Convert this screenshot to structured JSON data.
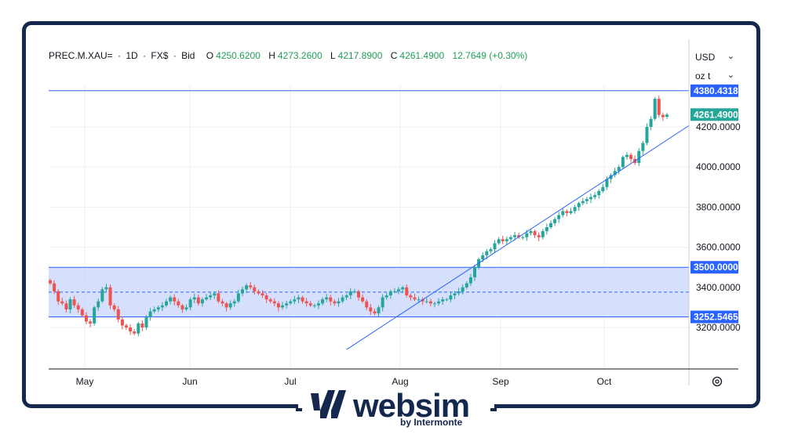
{
  "header": {
    "symbol": "PREC.M.XAU=",
    "interval": "1D",
    "exchange": "FX$",
    "side": "Bid",
    "o_label": "O",
    "o_value": "4250.6200",
    "h_label": "H",
    "h_value": "4273.2600",
    "l_label": "L",
    "l_value": "4217.8900",
    "c_label": "C",
    "c_value": "4261.4900",
    "change": "12.7649 (+0.30%)"
  },
  "currency_select": {
    "value": "USD"
  },
  "unit_select": {
    "value": "oz t"
  },
  "price_labels": {
    "resistance_high": "4380.4318",
    "last": "4261.4900",
    "range_top": "3500.0000",
    "range_bottom": "3252.5465"
  },
  "logo": {
    "text": "websim",
    "subtitle": "by Intermonte"
  },
  "colors": {
    "up": "#26a69a",
    "down": "#ef5350",
    "line": "#2962ff",
    "last": "#26a69a",
    "frame": "#14284d"
  },
  "chart_data": {
    "type": "candlestick",
    "x_labels": [
      "May",
      "Jun",
      "Jul",
      "Aug",
      "Sep",
      "Oct"
    ],
    "y_ticks": [
      "3200.0000",
      "3400.0000",
      "3600.0000",
      "3800.0000",
      "4000.0000",
      "4200.0000"
    ],
    "ylim": [
      3100,
      4460
    ],
    "last_price": 4261.49,
    "horizontal_line": 4380.4318,
    "range_zone": {
      "top": 3500,
      "bottom": 3252.5465,
      "mid": 3376.27
    },
    "trendline": {
      "from": {
        "index": 74,
        "price": 3090
      },
      "to": {
        "index": 159,
        "price": 4200
      }
    },
    "closes": [
      3420,
      3380,
      3330,
      3320,
      3290,
      3340,
      3310,
      3290,
      3260,
      3230,
      3220,
      3300,
      3330,
      3390,
      3400,
      3310,
      3290,
      3240,
      3210,
      3200,
      3180,
      3170,
      3220,
      3200,
      3250,
      3280,
      3290,
      3300,
      3310,
      3330,
      3350,
      3330,
      3310,
      3290,
      3300,
      3340,
      3350,
      3320,
      3340,
      3350,
      3360,
      3370,
      3330,
      3320,
      3300,
      3320,
      3330,
      3370,
      3390,
      3410,
      3400,
      3380,
      3370,
      3360,
      3340,
      3330,
      3320,
      3300,
      3310,
      3320,
      3330,
      3340,
      3350,
      3330,
      3320,
      3310,
      3310,
      3320,
      3340,
      3350,
      3330,
      3320,
      3330,
      3350,
      3360,
      3380,
      3380,
      3350,
      3330,
      3300,
      3280,
      3270,
      3300,
      3350,
      3360,
      3380,
      3380,
      3390,
      3400,
      3360,
      3350,
      3340,
      3340,
      3330,
      3330,
      3320,
      3320,
      3330,
      3340,
      3340,
      3360,
      3370,
      3380,
      3400,
      3420,
      3450,
      3500,
      3540,
      3560,
      3580,
      3590,
      3620,
      3640,
      3630,
      3640,
      3650,
      3660,
      3650,
      3650,
      3670,
      3680,
      3660,
      3650,
      3680,
      3700,
      3720,
      3740,
      3760,
      3780,
      3770,
      3780,
      3800,
      3820,
      3830,
      3840,
      3850,
      3860,
      3880,
      3900,
      3940,
      3960,
      3980,
      4000,
      4050,
      4060,
      4040,
      4020,
      4080,
      4120,
      4200,
      4240,
      4340,
      4260,
      4248.73,
      4261.49
    ]
  }
}
